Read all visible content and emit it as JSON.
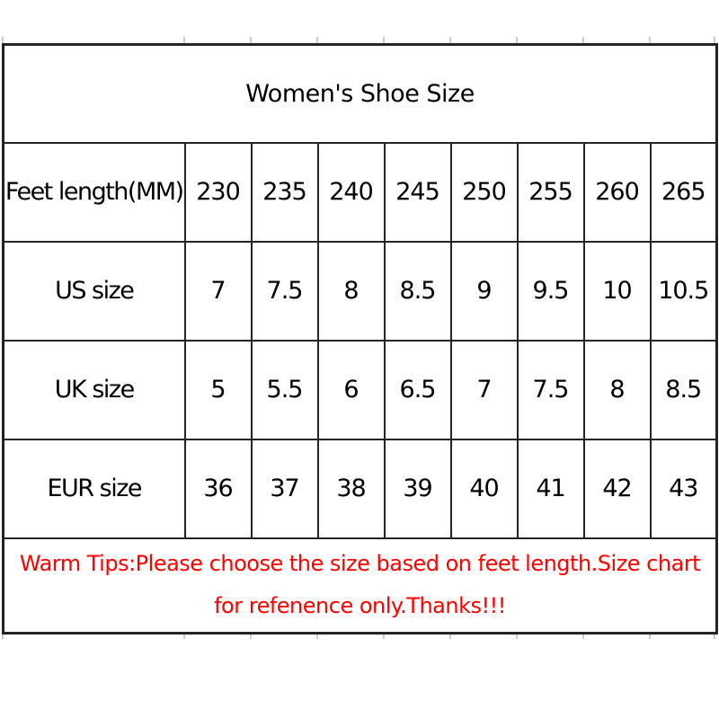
{
  "title": "Women's Shoe Size",
  "chart_data": {
    "type": "table",
    "title": "Women's Shoe Size",
    "rows": [
      {
        "label": "Feet length(MM)",
        "values": [
          "230",
          "235",
          "240",
          "245",
          "250",
          "255",
          "260",
          "265"
        ]
      },
      {
        "label": "US size",
        "values": [
          "7",
          "7.5",
          "8",
          "8.5",
          "9",
          "9.5",
          "10",
          "10.5"
        ]
      },
      {
        "label": "UK size",
        "values": [
          "5",
          "5.5",
          "6",
          "6.5",
          "7",
          "7.5",
          "8",
          "8.5"
        ]
      },
      {
        "label": "EUR size",
        "values": [
          "36",
          "37",
          "38",
          "39",
          "40",
          "41",
          "42",
          "43"
        ]
      }
    ],
    "note_lines": [
      "Warm Tips:Please choose the size based on feet length.Size chart",
      "for refenence only.Thanks!!!"
    ]
  },
  "colors": {
    "note_red": "#ff0000",
    "border": "#242424",
    "text": "#000000",
    "background": "#ffffff"
  }
}
